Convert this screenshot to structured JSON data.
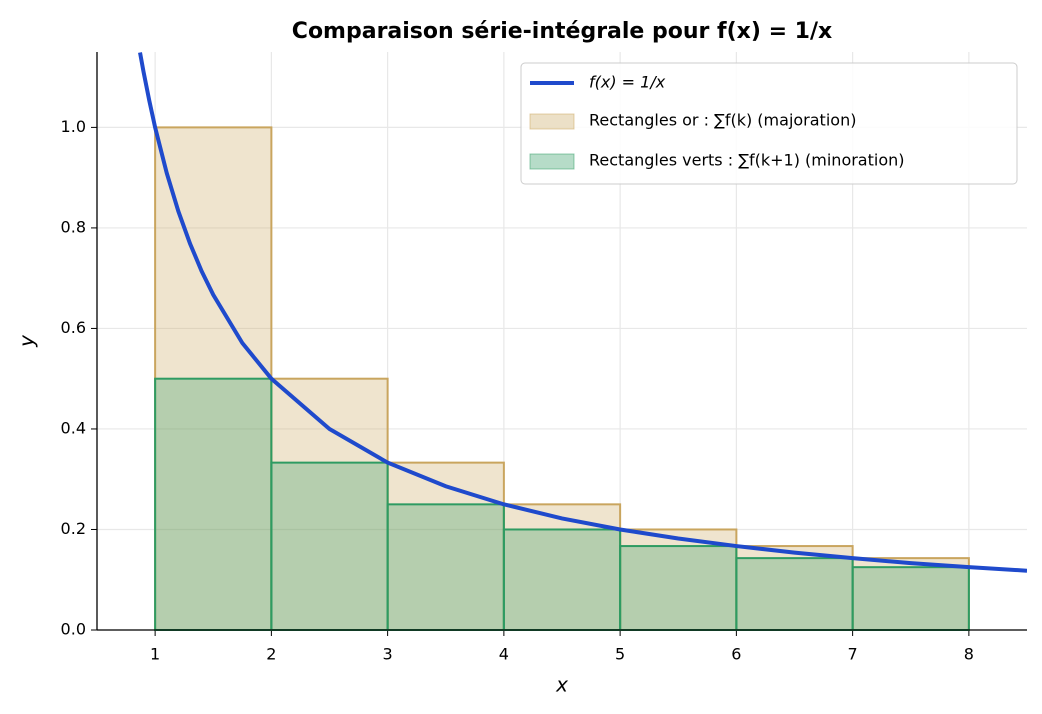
{
  "chart_data": {
    "type": "histogram",
    "title": "Comparaison série-intégrale pour f(x) = 1/x",
    "xlabel": "x",
    "ylabel": "y",
    "xlim": [
      0.5,
      8.5
    ],
    "ylim": [
      0,
      1.15
    ],
    "xticks": [
      1,
      2,
      3,
      4,
      5,
      6,
      7,
      8
    ],
    "yticks": [
      {
        "value": 0,
        "label": "0.0"
      },
      0.2,
      0.4,
      0.6,
      0.8,
      {
        "value": 1,
        "label": "1.0"
      }
    ],
    "grid": true,
    "legend": "upper right",
    "bins": [
      1,
      2,
      3,
      4,
      5,
      6,
      7,
      8
    ],
    "series": [
      {
        "name": "Rectangles or : ∑f(k) (majoration)",
        "color": "#c9a55e",
        "values": [
          1,
          0.5,
          0.333,
          0.25,
          0.2,
          0.167,
          0.143
        ]
      },
      {
        "name": "Rectangles verts : ∑f(k+1) (minoration)",
        "color": "#2e9b62",
        "values": [
          0.5,
          0.333,
          0.25,
          0.2,
          0.167,
          0.143,
          0.125
        ]
      }
    ],
    "curve": {
      "name": "f(x) = 1/x",
      "color": "#1f4acc",
      "x": [
        0.87,
        0.9,
        0.95,
        1,
        1.1,
        1.2,
        1.3,
        1.4,
        1.5,
        1.75,
        2,
        2.5,
        3,
        3.5,
        4,
        4.5,
        5,
        5.5,
        6,
        6.5,
        7,
        7.5,
        8,
        8.5
      ],
      "y": [
        1.149,
        1.111,
        1.053,
        1,
        0.909,
        0.833,
        0.769,
        0.714,
        0.667,
        0.571,
        0.5,
        0.4,
        0.333,
        0.286,
        0.25,
        0.222,
        0.2,
        0.182,
        0.167,
        0.154,
        0.143,
        0.133,
        0.125,
        0.118
      ]
    }
  }
}
